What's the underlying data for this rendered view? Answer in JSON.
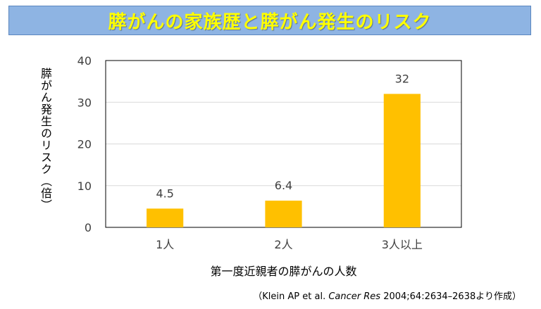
{
  "title": "膵がんの家族歴と膵がん発生のリスク",
  "colors": {
    "banner_bg": "#8eb4e3",
    "title_text": "#ffff00",
    "bar": "#ffc000",
    "grid": "#d9d9d9",
    "axis_text": "#404040"
  },
  "chart_data": {
    "type": "bar",
    "title": "",
    "xlabel": "第一度近親者の膵がんの人数",
    "ylabel": "膵がん発生のリスク（倍）",
    "categories": [
      "1人",
      "2人",
      "3人以上"
    ],
    "values": [
      4.5,
      6.4,
      32
    ],
    "data_labels": [
      "4.5",
      "6.4",
      "32"
    ],
    "ylim": [
      0,
      40
    ],
    "yticks": [
      0,
      10,
      20,
      30,
      40
    ],
    "grid": true
  },
  "source": {
    "prefix": "（Klein AP et al. ",
    "journal": "Cancer Res",
    "suffix": " 2004;64:2634–2638より作成）"
  }
}
